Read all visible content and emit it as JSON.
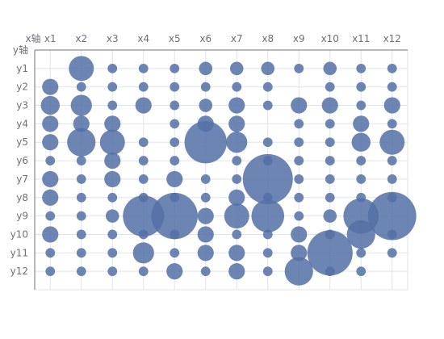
{
  "chart_data": {
    "type": "scatter",
    "x_axis_name": "x轴",
    "y_axis_name": "y轴",
    "x_categories": [
      "x1",
      "x2",
      "x3",
      "x4",
      "x5",
      "x6",
      "x7",
      "x8",
      "x9",
      "x10",
      "x11",
      "x12"
    ],
    "y_categories": [
      "y1",
      "y2",
      "y3",
      "y4",
      "y5",
      "y6",
      "y7",
      "y8",
      "y9",
      "y10",
      "y11",
      "y12"
    ],
    "x_axis_position": "top",
    "y_axis_inverse": true,
    "grid": true,
    "color": "#5470a5",
    "size_values": [
      [
        0,
        7,
        1,
        1,
        1,
        2,
        2,
        2,
        1,
        2,
        1,
        1
      ],
      [
        3,
        1,
        1,
        1,
        1,
        1,
        1,
        1,
        0,
        1,
        1,
        1
      ],
      [
        4,
        5,
        1,
        3,
        1,
        2,
        3,
        1,
        3,
        3,
        1,
        3
      ],
      [
        3,
        3,
        3,
        0,
        1,
        3,
        3,
        0,
        1,
        1,
        3,
        1
      ],
      [
        3,
        9,
        7,
        1,
        1,
        20,
        5,
        1,
        1,
        1,
        4,
        7
      ],
      [
        1,
        1,
        3,
        1,
        1,
        0,
        1,
        1,
        1,
        1,
        1,
        1
      ],
      [
        3,
        1,
        3,
        1,
        3,
        1,
        1,
        28,
        1,
        1,
        1,
        1
      ],
      [
        3,
        1,
        1,
        1,
        1,
        1,
        3,
        1,
        1,
        1,
        1,
        1
      ],
      [
        1,
        1,
        2,
        19,
        24,
        3,
        7,
        12,
        1,
        2,
        14,
        26
      ],
      [
        3,
        1,
        1,
        1,
        1,
        3,
        1,
        1,
        3,
        1,
        9,
        1
      ],
      [
        1,
        1,
        1,
        5,
        1,
        3,
        3,
        1,
        3,
        23,
        1,
        1
      ],
      [
        1,
        1,
        1,
        1,
        3,
        1,
        3,
        1,
        9,
        1,
        1,
        0
      ]
    ]
  }
}
